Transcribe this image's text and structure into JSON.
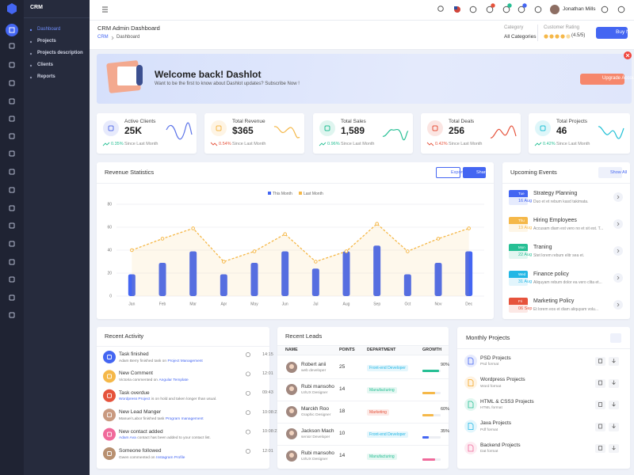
{
  "sidebar": {
    "brand": "CRM",
    "menu": [
      "Dashboard",
      "Projects",
      "Projects description",
      "Clients",
      "Reports"
    ]
  },
  "header": {
    "user": "Jonathan Mills"
  },
  "page_header": {
    "title": "CRM Admin Dashboard",
    "breadcrumb": [
      "CRM",
      "Dashboard"
    ],
    "category_label": "Category",
    "category_value": "All Categories",
    "rating_label": "Customer Rating",
    "rating_text": "(4.5/5)",
    "button": "Buy Now"
  },
  "welcome": {
    "title": "Welcome back! Dashlot",
    "text": "Want to be the first to know about Dashlot updates? Subscribe Now !",
    "button": "Upgrade Account"
  },
  "stats": [
    {
      "title": "Active Clients",
      "value": "25K",
      "change": "0.35%",
      "trend": "up",
      "note": "Since Last Month",
      "color": "#5b73e8"
    },
    {
      "title": "Total Revenue",
      "value": "$365",
      "change": "0.54%",
      "trend": "down",
      "note": "Since Last Month",
      "color": "#f5b849"
    },
    {
      "title": "Total Sales",
      "value": "1,589",
      "change": "0.96%",
      "trend": "up",
      "note": "Since Last Month",
      "color": "#26bf94"
    },
    {
      "title": "Total Deals",
      "value": "256",
      "change": "0.42%",
      "trend": "down",
      "note": "Since Last Month",
      "color": "#e6533c"
    },
    {
      "title": "Total Projects",
      "value": "46",
      "change": "0.42%",
      "trend": "up",
      "note": "Since Last Month",
      "color": "#23c1d6"
    }
  ],
  "revenue": {
    "title": "Revenue Statistics",
    "export": "Export",
    "share": "Share",
    "chart": {
      "type": "bar-line",
      "categories": [
        "Jan",
        "Feb",
        "Mar",
        "Apr",
        "May",
        "Jun",
        "Jul",
        "Aug",
        "Sep",
        "Oct",
        "Nov",
        "Dec"
      ],
      "series": [
        {
          "name": "This Month",
          "type": "bar",
          "color": "#4466f2",
          "values": [
            19,
            29,
            39,
            19,
            29,
            39,
            24,
            39,
            44,
            19,
            29,
            39
          ]
        },
        {
          "name": "Last Month",
          "type": "line",
          "color": "#f5b849",
          "values": [
            40,
            50,
            59,
            30,
            39,
            54,
            30,
            39,
            63,
            39,
            50,
            59
          ]
        }
      ],
      "ylim": [
        0,
        80
      ],
      "yticks": [
        0,
        20,
        40,
        60,
        80
      ],
      "grid": true
    }
  },
  "events": {
    "title": "Upcoming Events",
    "button": "Show All",
    "items": [
      {
        "day": "Tue",
        "date": "16 Aug",
        "title": "Strategy Planning",
        "text": "Duo et et rebum kasd takimata.",
        "color": "#4466f2"
      },
      {
        "day": "Thu",
        "date": "19 Aug",
        "title": "Hiring Employees",
        "text": "Accusam diam est vero no et sit est. T...",
        "color": "#f5b849"
      },
      {
        "day": "Mon",
        "date": "22 Aug",
        "title": "Traning",
        "text": "Stet lorem rebum elitr sea et.",
        "color": "#26bf94"
      },
      {
        "day": "Wed",
        "date": "31 Aug",
        "title": "Finance policy",
        "text": "Aliquyam rebum dolor ea vero clita et...",
        "color": "#23b7e5"
      },
      {
        "day": "Fri",
        "date": "06 Sep",
        "title": "Marketing Policy",
        "text": "Et lorem eos et diam aliquyam volu...",
        "color": "#e6533c"
      }
    ]
  },
  "activity": {
    "title": "Recent Activity",
    "items": [
      {
        "title": "Task finished",
        "segments": [
          {
            "text": "Adam Berry finished task on"
          },
          {
            "link": "Project Management"
          }
        ],
        "time": "14:15",
        "color": "#4466f2"
      },
      {
        "title": "New Comment",
        "segments": [
          {
            "text": "Victoria commented on"
          },
          {
            "link": "Angular Template"
          }
        ],
        "time": "12:01",
        "color": "#f5b849"
      },
      {
        "title": "Task overdue",
        "segments": [
          {
            "link": "Wordpress Project"
          },
          {
            "text": "is on hold and taken longer than usual."
          }
        ],
        "time": "09:43",
        "color": "#e6533c"
      },
      {
        "title": "New Lead Manger",
        "segments": [
          {
            "text": "Manuel Labor finished task"
          },
          {
            "link": "Program management"
          }
        ],
        "time": "10:08:22",
        "color": "#c99a80"
      },
      {
        "title": "New contact added",
        "segments": [
          {
            "link": "Adam Ava"
          },
          {
            "text": "contact has been added to your contact list."
          }
        ],
        "time": "10:08:22",
        "color": "#f06a9b"
      },
      {
        "title": "Someone followed",
        "segments": [
          {
            "text": "Gwen commented on"
          },
          {
            "link": "Instagram Profile"
          }
        ],
        "time": "12:01",
        "color": "#b89070"
      }
    ]
  },
  "leads": {
    "title": "Recent Leads",
    "columns": [
      "NAME",
      "POINTS",
      "DEPARTMENT",
      "GROWTH"
    ],
    "rows": [
      {
        "name": "Robert anii",
        "role": "web developer",
        "points": "25",
        "department": "Front-end Developer",
        "dept_color": "#23b7e5",
        "growth": 90,
        "growth_label": "90%",
        "growth_color": "#26bf94"
      },
      {
        "name": "Rubi mansoho",
        "role": "UI/UX Designer",
        "points": "14",
        "department": "Manufacturing",
        "dept_color": "#26bf94",
        "growth": 70,
        "growth_label": null,
        "growth_color": "#f5b849"
      },
      {
        "name": "Marckh Roo",
        "role": "Graphic Designer",
        "points": "18",
        "department": "Marketing",
        "dept_color": "#e6533c",
        "growth": 60,
        "growth_label": "60%",
        "growth_color": "#f5b849"
      },
      {
        "name": "Jackson Mach",
        "role": "senior Developer",
        "points": "10",
        "department": "Front-end Developer",
        "dept_color": "#23b7e5",
        "growth": 35,
        "growth_label": "35%",
        "growth_color": "#4466f2"
      },
      {
        "name": "Rubi mansoho",
        "role": "UI/UX Designer",
        "points": "14",
        "department": "Manufacturing",
        "dept_color": "#26bf94",
        "growth": 70,
        "growth_label": null,
        "growth_color": "#f06a9b"
      }
    ]
  },
  "projects": {
    "title": "Monthly Projects",
    "items": [
      {
        "name": "PSD Projects",
        "format": "Psd format",
        "color": "#4466f2"
      },
      {
        "name": "Wordpress Projects",
        "format": "Word format",
        "color": "#f5a623"
      },
      {
        "name": "HTML & CSS3 Projects",
        "format": "HTML format",
        "color": "#26bf94"
      },
      {
        "name": "Java Projects",
        "format": "Pdf format",
        "color": "#23b7e5"
      },
      {
        "name": "Backend Projects",
        "format": "Dat format",
        "color": "#f06a9b"
      }
    ]
  }
}
